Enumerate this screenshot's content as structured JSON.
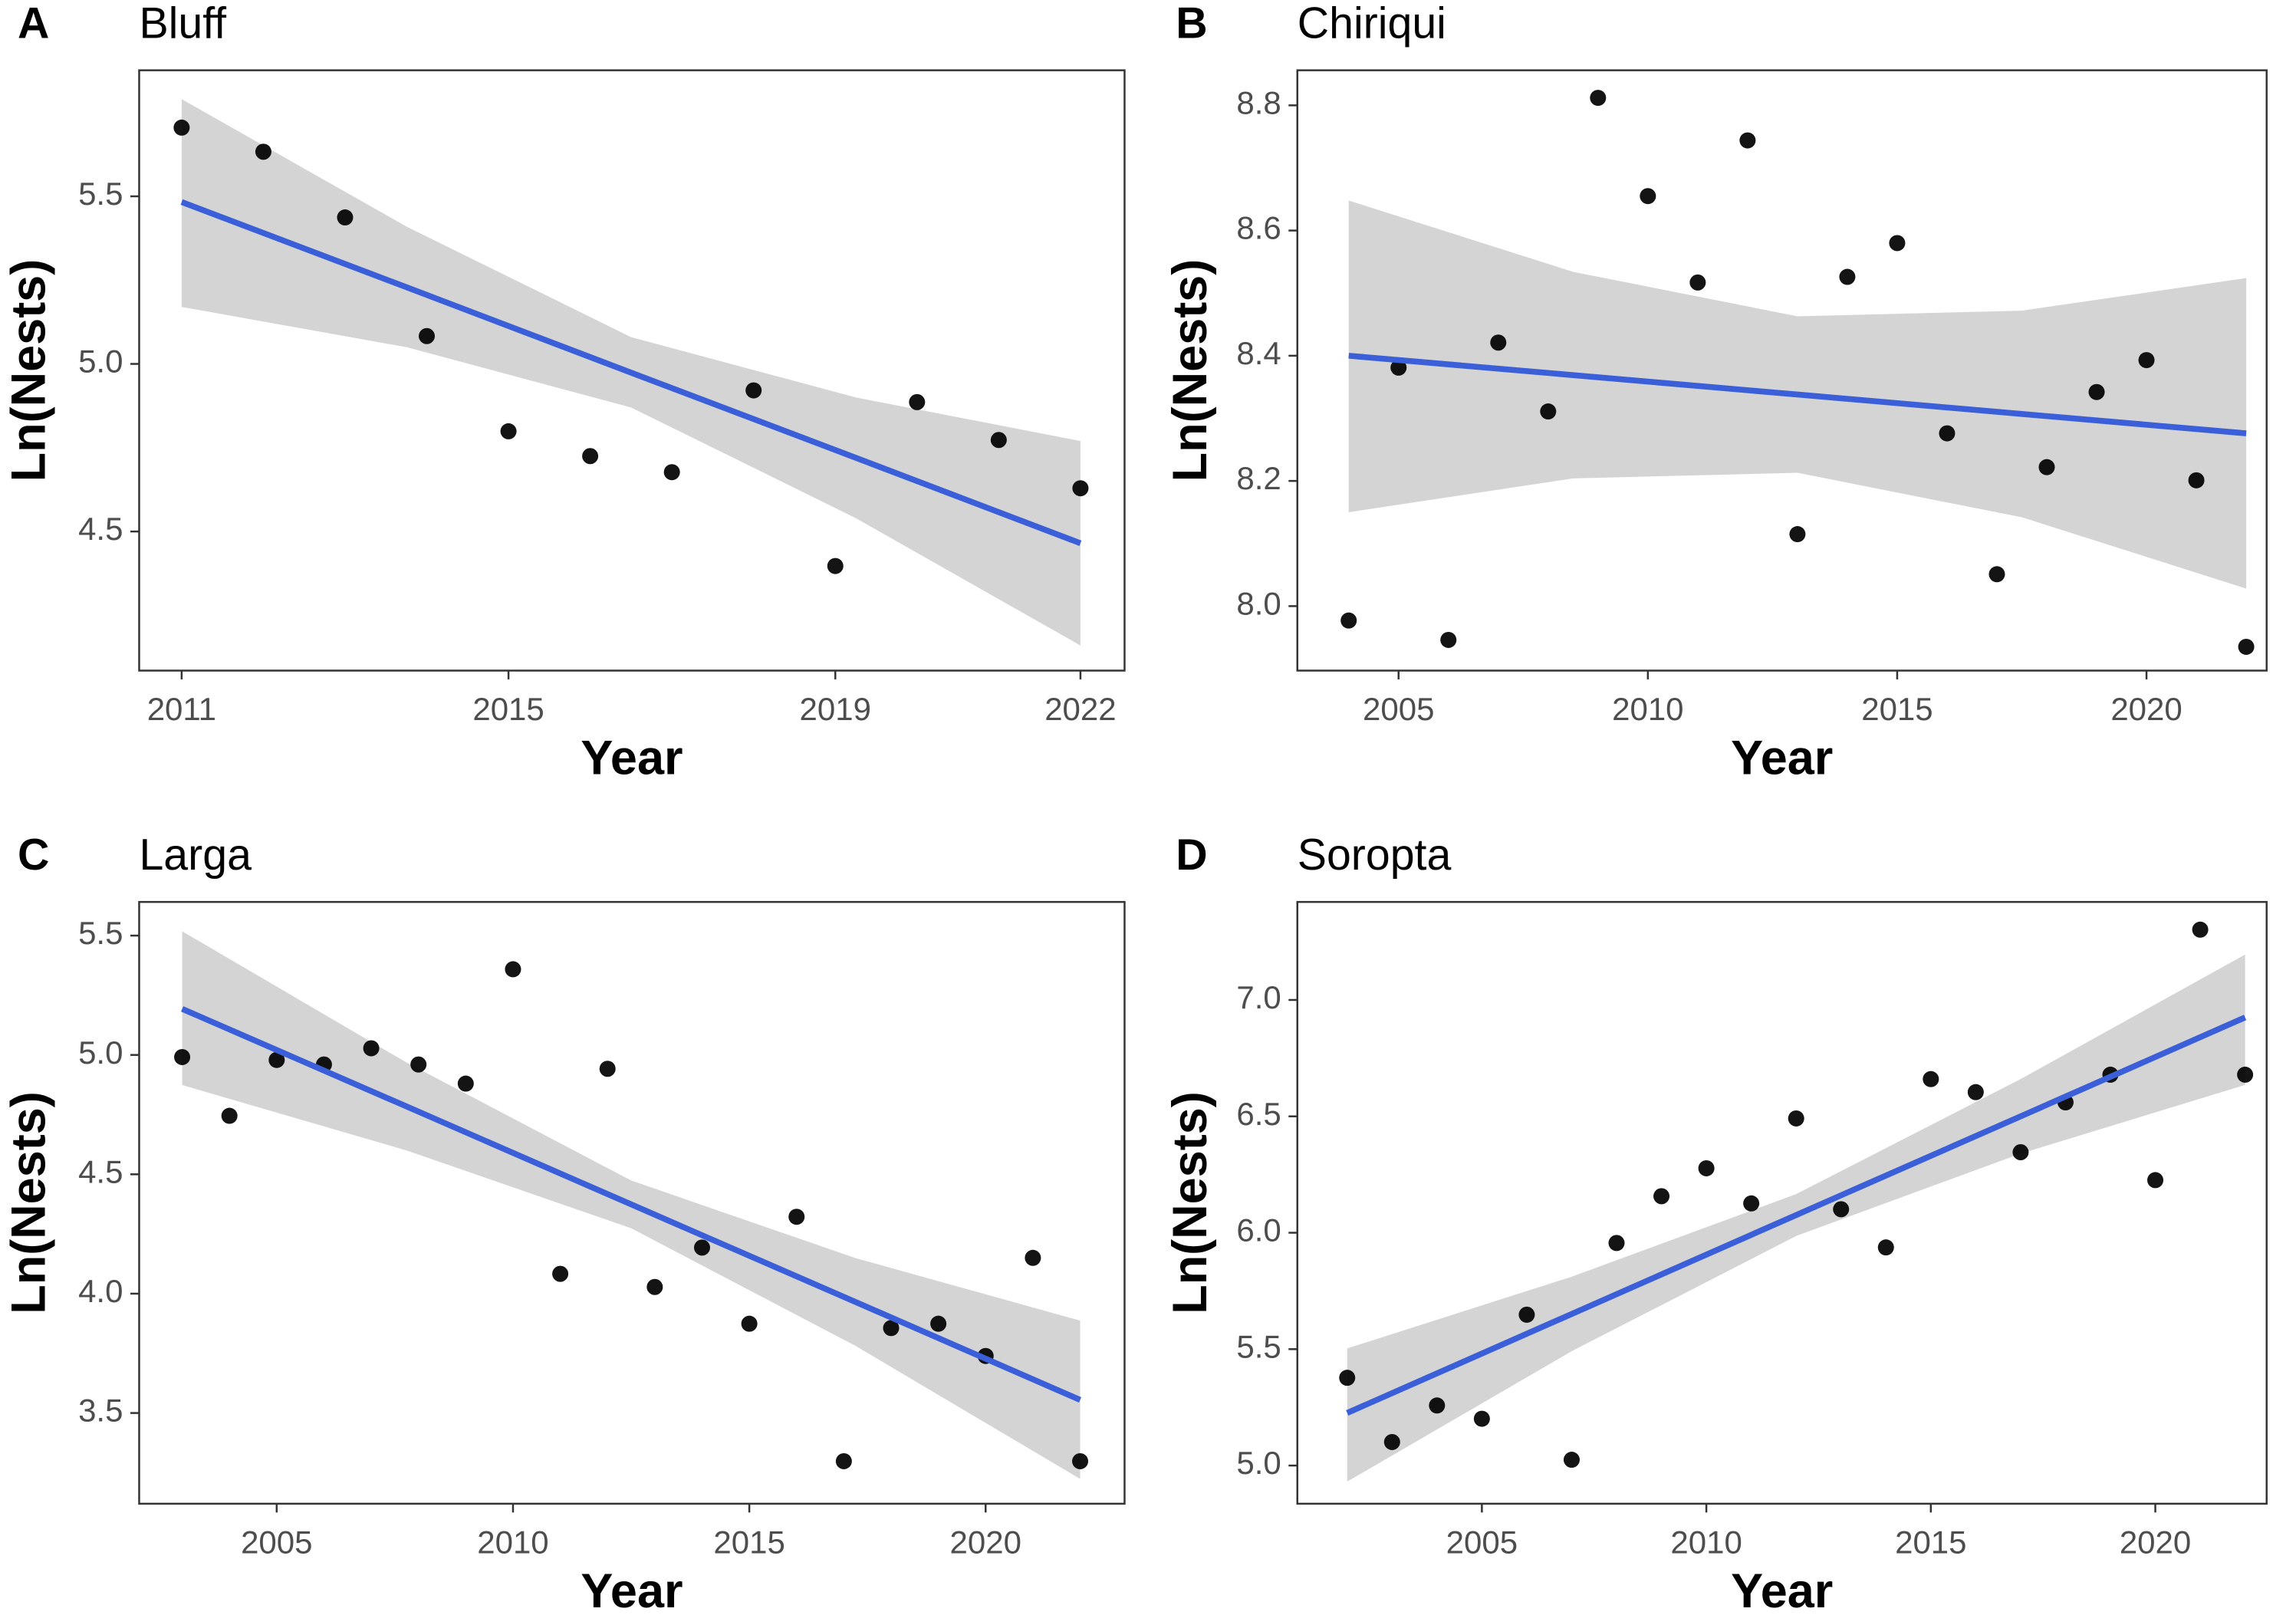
{
  "chart_data": [
    {
      "type": "scatter",
      "panel": "A",
      "title": "Bluff",
      "xlabel": "Year",
      "ylabel": "Ln(Nests)",
      "xlim": [
        2010.48,
        2022.54
      ],
      "xticks": [
        2011,
        2015,
        2019,
        2022
      ],
      "ylim": [
        4.085,
        5.876
      ],
      "yticks": [
        {
          "value": 4.5,
          "label": "4.5"
        },
        {
          "value": 5.0,
          "label": "5.0"
        },
        {
          "value": 5.5,
          "label": "5.5"
        }
      ],
      "points": {
        "color": "#000000",
        "x": [
          2011,
          2012,
          2013,
          2014,
          2015,
          2016,
          2017,
          2018,
          2019,
          2020,
          2021,
          2022
        ],
        "y": [
          5.705,
          5.633,
          5.437,
          5.083,
          4.799,
          4.725,
          4.677,
          4.921,
          4.397,
          4.886,
          4.773,
          4.629
        ]
      },
      "fit": {
        "color": "#3a5fd9",
        "band_color": "#d4d4d4",
        "x": [
          2011,
          2013.75,
          2016.5,
          2019.25,
          2022
        ],
        "y": [
          5.483,
          5.229,
          4.974,
          4.72,
          4.465
        ],
        "lower": [
          5.17,
          5.05,
          4.87,
          4.54,
          4.16
        ],
        "upper": [
          5.79,
          5.41,
          5.08,
          4.9,
          4.77
        ]
      }
    },
    {
      "type": "scatter",
      "panel": "B",
      "title": "Chiriqui",
      "xlabel": "Year",
      "ylabel": "Ln(Nests)",
      "xlim": [
        2002.97,
        2022.41
      ],
      "xticks": [
        2005,
        2010,
        2015,
        2020
      ],
      "ylim": [
        7.897,
        8.856
      ],
      "yticks": [
        {
          "value": 8.0,
          "label": "8.0"
        },
        8.2,
        8.4,
        8.6,
        8.8
      ],
      "points": {
        "color": "#000000",
        "x": [
          2004,
          2005,
          2006,
          2007,
          2008,
          2009,
          2010,
          2011,
          2012,
          2013,
          2014,
          2015,
          2016,
          2017,
          2018,
          2019,
          2020,
          2021,
          2022
        ],
        "y": [
          7.977,
          8.381,
          7.946,
          8.421,
          8.311,
          8.812,
          8.655,
          8.517,
          8.744,
          8.115,
          8.526,
          8.58,
          8.276,
          8.051,
          8.222,
          8.342,
          8.393,
          8.201,
          7.935
        ]
      },
      "fit": {
        "color": "#3a5fd9",
        "band_color": "#d4d4d4",
        "x": [
          2004,
          2008.5,
          2013,
          2017.5,
          2022
        ],
        "y": [
          8.4,
          8.369,
          8.338,
          8.307,
          8.276
        ],
        "lower": [
          8.15,
          8.204,
          8.213,
          8.142,
          8.028
        ],
        "upper": [
          8.648,
          8.534,
          8.463,
          8.472,
          8.524
        ]
      }
    },
    {
      "type": "scatter",
      "panel": "C",
      "title": "Larga",
      "xlabel": "Year",
      "ylabel": "Ln(Nests)",
      "xlim": [
        2002.09,
        2022.94
      ],
      "xticks": [
        2005,
        2010,
        2015,
        2020
      ],
      "ylim": [
        3.12,
        5.641
      ],
      "yticks": [
        3.5,
        {
          "value": 4.0,
          "label": "4.0"
        },
        4.5,
        {
          "value": 5.0,
          "label": "5.0"
        },
        5.5
      ],
      "points": {
        "color": "#000000",
        "x": [
          2003,
          2004,
          2005,
          2006,
          2007,
          2008,
          2009,
          2010,
          2011,
          2012,
          2013,
          2014,
          2015,
          2016,
          2017,
          2018,
          2019,
          2020,
          2021,
          2022
        ],
        "y": [
          4.991,
          4.745,
          4.979,
          4.96,
          5.028,
          4.96,
          4.88,
          5.359,
          4.083,
          4.942,
          4.028,
          4.193,
          3.874,
          4.322,
          3.298,
          3.856,
          3.874,
          3.739,
          4.15,
          3.298
        ]
      },
      "fit": {
        "color": "#3a5fd9",
        "band_color": "#d4d4d4",
        "x": [
          2003,
          2007.75,
          2012.5,
          2017.25,
          2022
        ],
        "y": [
          5.193,
          4.784,
          4.374,
          3.965,
          3.555
        ],
        "lower": [
          4.874,
          4.6,
          4.274,
          3.781,
          3.224
        ],
        "upper": [
          5.518,
          4.968,
          4.474,
          4.149,
          3.887
        ]
      }
    },
    {
      "type": "scatter",
      "panel": "D",
      "title": "Soropta",
      "xlabel": "Year",
      "ylabel": "Ln(Nests)",
      "xlim": [
        2000.89,
        2022.48
      ],
      "xticks": [
        2005,
        2010,
        2015,
        2020
      ],
      "ylim": [
        4.836,
        7.421
      ],
      "yticks": [
        {
          "value": 5.0,
          "label": "5.0"
        },
        5.5,
        {
          "value": 6.0,
          "label": "6.0"
        },
        6.5,
        {
          "value": 7.0,
          "label": "7.0"
        }
      ],
      "points": {
        "color": "#000000",
        "x": [
          2002,
          2003,
          2004,
          2005,
          2006,
          2007,
          2008,
          2009,
          2010,
          2011,
          2012,
          2013,
          2014,
          2015,
          2016,
          2017,
          2018,
          2019,
          2020,
          2021,
          2022
        ],
        "y": [
          5.377,
          5.101,
          5.258,
          5.201,
          5.648,
          5.025,
          5.956,
          6.157,
          6.277,
          6.126,
          6.491,
          6.101,
          5.937,
          6.66,
          6.604,
          6.346,
          6.56,
          6.679,
          6.226,
          7.302,
          6.679
        ]
      },
      "fit": {
        "color": "#3a5fd9",
        "band_color": "#d4d4d4",
        "x": [
          2002,
          2007,
          2012,
          2017,
          2022
        ],
        "y": [
          5.226,
          5.651,
          6.076,
          6.5,
          6.925
        ],
        "lower": [
          4.931,
          5.491,
          5.986,
          6.34,
          6.635
        ],
        "upper": [
          5.503,
          5.811,
          6.166,
          6.66,
          7.195
        ]
      }
    }
  ]
}
